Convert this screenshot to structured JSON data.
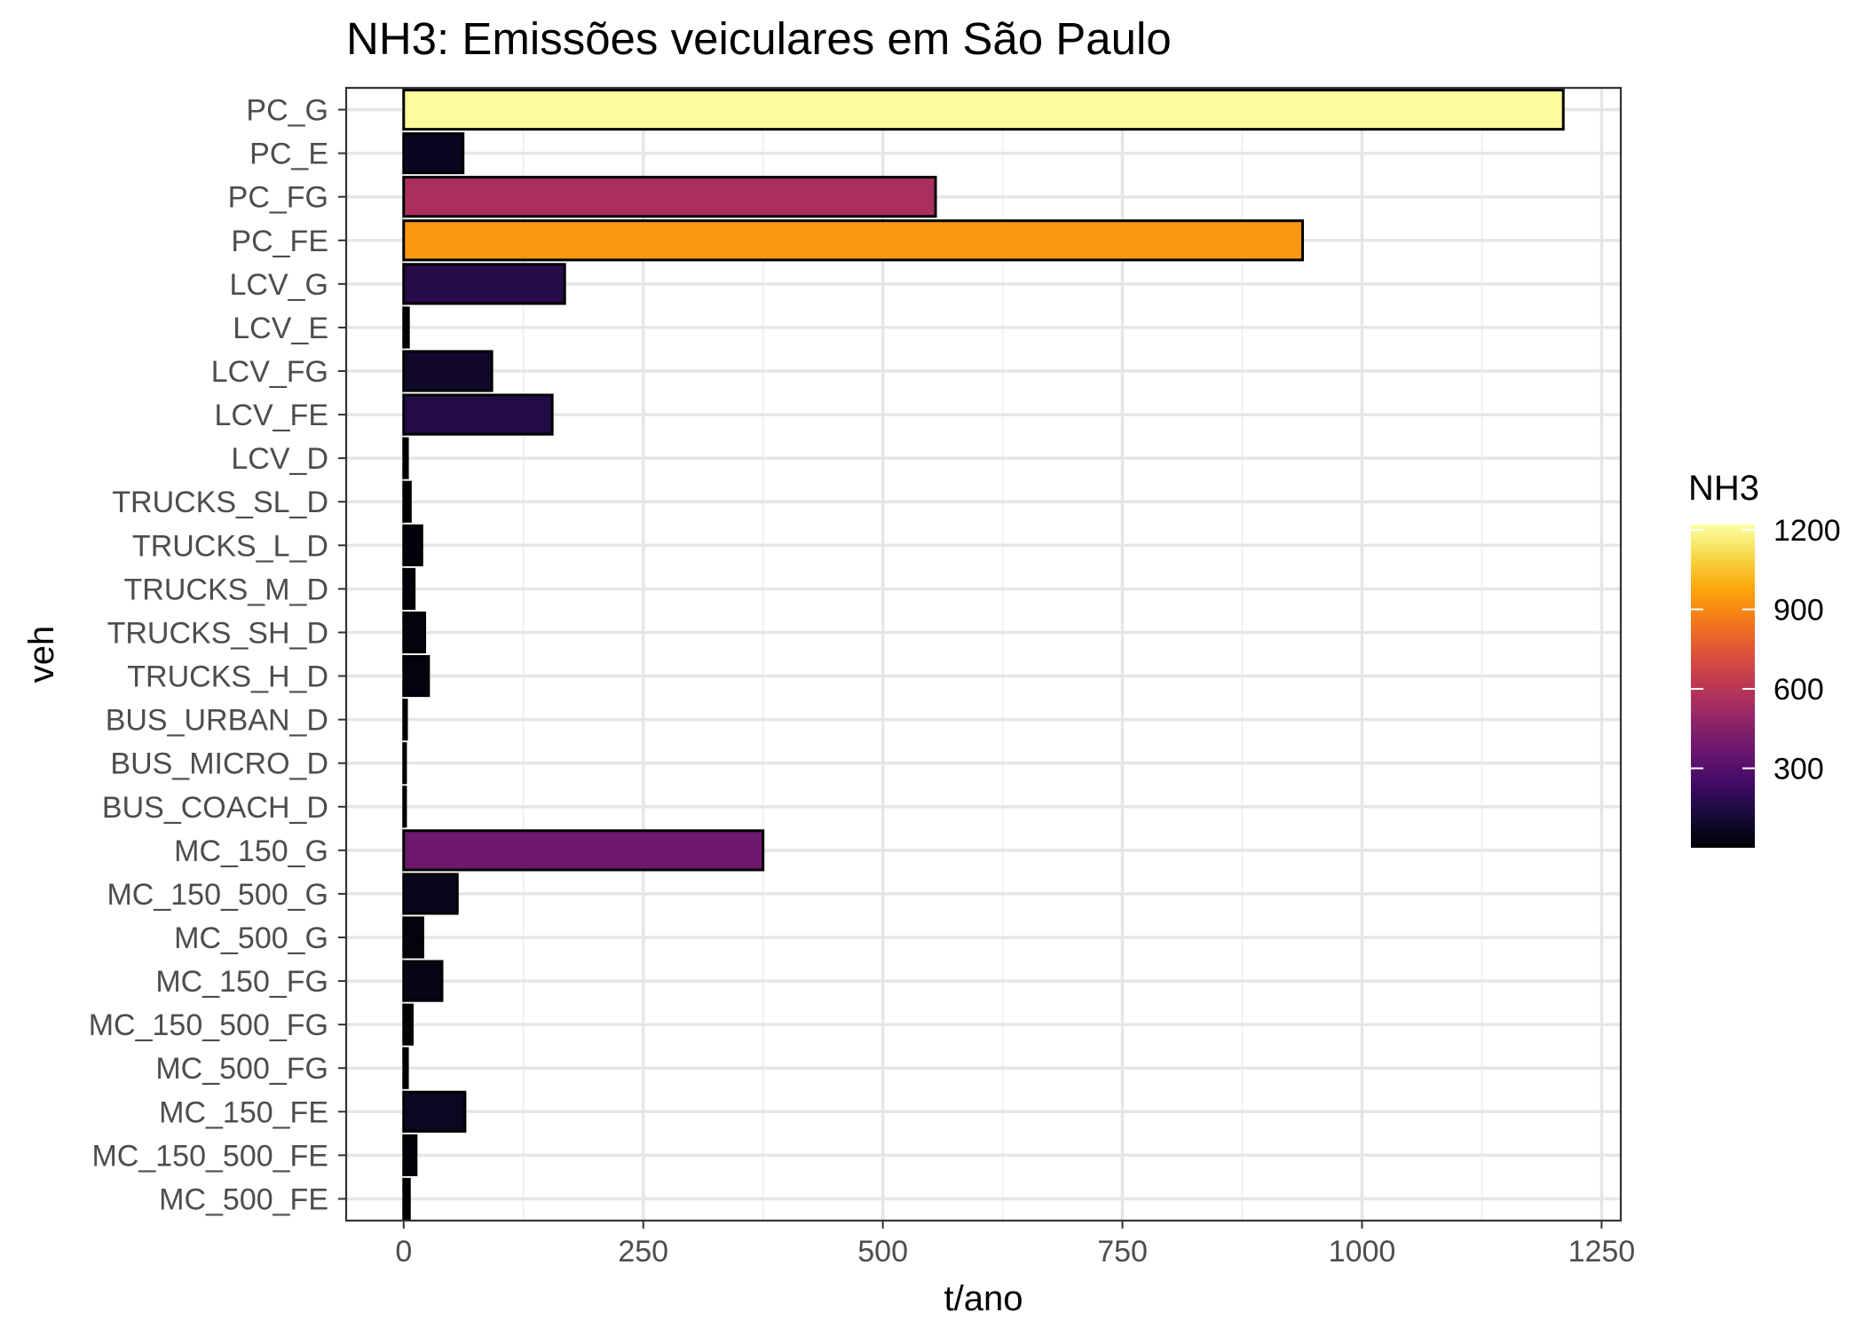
{
  "chart_data": {
    "type": "bar",
    "orientation": "horizontal",
    "title": "NH3: Emissões veiculares em São Paulo",
    "xlabel": "t/ano",
    "ylabel": "veh",
    "xlim": [
      -60,
      1270
    ],
    "xticks": [
      0,
      250,
      500,
      750,
      1000,
      1250
    ],
    "grid": true,
    "categories": [
      "PC_G",
      "PC_E",
      "PC_FG",
      "PC_FE",
      "LCV_G",
      "LCV_E",
      "LCV_FG",
      "LCV_FE",
      "LCV_D",
      "TRUCKS_SL_D",
      "TRUCKS_L_D",
      "TRUCKS_M_D",
      "TRUCKS_SH_D",
      "TRUCKS_H_D",
      "BUS_URBAN_D",
      "BUS_MICRO_D",
      "BUS_COACH_D",
      "MC_150_G",
      "MC_150_500_G",
      "MC_500_G",
      "MC_150_FG",
      "MC_150_500_FG",
      "MC_500_FG",
      "MC_150_FE",
      "MC_150_500_FE",
      "MC_500_FE"
    ],
    "values": [
      1210,
      62,
      555,
      938,
      168,
      5,
      92,
      155,
      4,
      7,
      19,
      11,
      22,
      26,
      3,
      2,
      2,
      375,
      56,
      20,
      40,
      9,
      4,
      64,
      13,
      6
    ],
    "legend": {
      "title": "NH3",
      "placement": "right",
      "ticks": [
        300,
        600,
        900,
        1200
      ],
      "range": [
        0,
        1220
      ],
      "palette": "inferno"
    }
  }
}
